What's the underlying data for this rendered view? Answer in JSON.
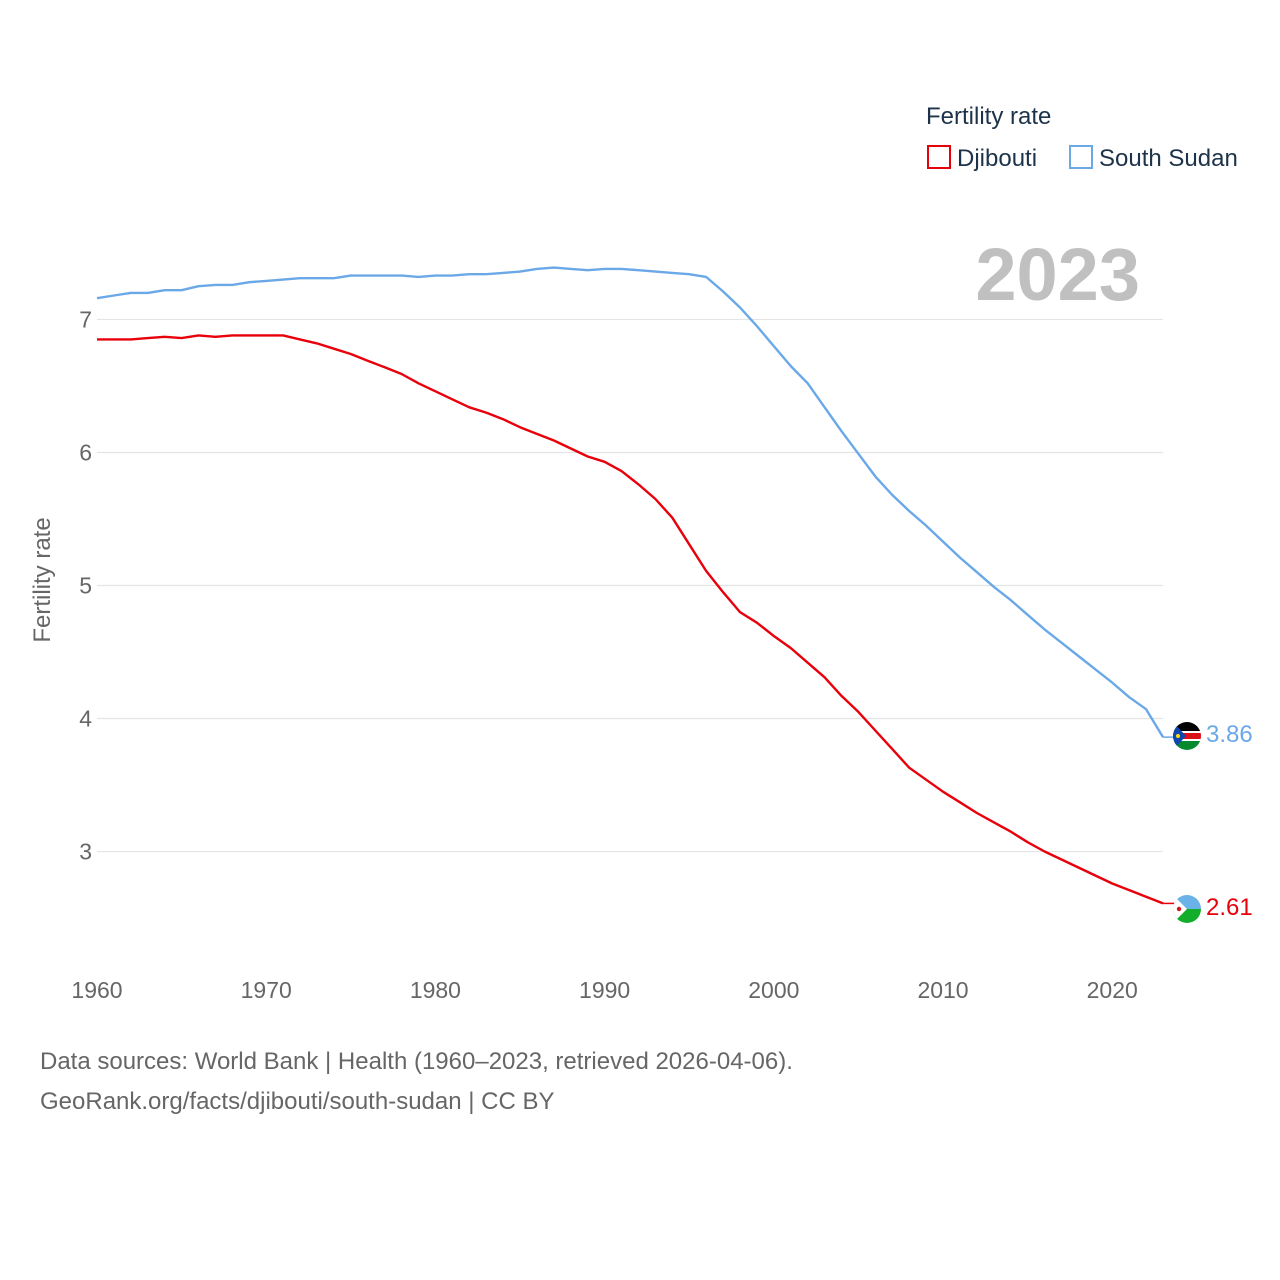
{
  "chart_data": {
    "type": "line",
    "title": "",
    "xlabel": "",
    "ylabel": "Fertility rate",
    "xlim": [
      1960,
      2023
    ],
    "ylim": [
      2.35,
      7.65
    ],
    "x_ticks": [
      1960,
      1970,
      1980,
      1990,
      2000,
      2010,
      2020
    ],
    "y_ticks": [
      3,
      4,
      5,
      6,
      7
    ],
    "grid": "horizontal",
    "legend_title": "Fertility rate",
    "legend_position": "top-right",
    "year_stamp": "2023",
    "x": [
      1960,
      1961,
      1962,
      1963,
      1964,
      1965,
      1966,
      1967,
      1968,
      1969,
      1970,
      1971,
      1972,
      1973,
      1974,
      1975,
      1976,
      1977,
      1978,
      1979,
      1980,
      1981,
      1982,
      1983,
      1984,
      1985,
      1986,
      1987,
      1988,
      1989,
      1990,
      1991,
      1992,
      1993,
      1994,
      1995,
      1996,
      1997,
      1998,
      1999,
      2000,
      2001,
      2002,
      2003,
      2004,
      2005,
      2006,
      2007,
      2008,
      2009,
      2010,
      2011,
      2012,
      2013,
      2014,
      2015,
      2016,
      2017,
      2018,
      2019,
      2020,
      2021,
      2022,
      2023
    ],
    "series": [
      {
        "name": "Djibouti",
        "color": "#e8000b",
        "end_label": "2.61",
        "values": [
          6.85,
          6.85,
          6.85,
          6.86,
          6.87,
          6.86,
          6.88,
          6.87,
          6.88,
          6.88,
          6.88,
          6.88,
          6.85,
          6.82,
          6.78,
          6.74,
          6.69,
          6.64,
          6.59,
          6.52,
          6.46,
          6.4,
          6.34,
          6.3,
          6.25,
          6.19,
          6.14,
          6.09,
          6.03,
          5.97,
          5.93,
          5.86,
          5.76,
          5.65,
          5.51,
          5.31,
          5.11,
          4.95,
          4.8,
          4.72,
          4.62,
          4.53,
          4.42,
          4.31,
          4.17,
          4.05,
          3.91,
          3.77,
          3.63,
          3.54,
          3.45,
          3.37,
          3.29,
          3.22,
          3.15,
          3.07,
          3.0,
          2.94,
          2.88,
          2.82,
          2.76,
          2.71,
          2.66,
          2.61
        ]
      },
      {
        "name": "South Sudan",
        "color": "#6aa8e8",
        "end_label": "3.86",
        "values": [
          7.16,
          7.18,
          7.2,
          7.2,
          7.22,
          7.22,
          7.25,
          7.26,
          7.26,
          7.28,
          7.29,
          7.3,
          7.31,
          7.31,
          7.31,
          7.33,
          7.33,
          7.33,
          7.33,
          7.32,
          7.33,
          7.33,
          7.34,
          7.34,
          7.35,
          7.36,
          7.38,
          7.39,
          7.38,
          7.37,
          7.38,
          7.38,
          7.37,
          7.36,
          7.35,
          7.34,
          7.32,
          7.21,
          7.09,
          6.95,
          6.8,
          6.65,
          6.52,
          6.34,
          6.16,
          5.99,
          5.82,
          5.68,
          5.56,
          5.45,
          5.33,
          5.21,
          5.1,
          4.99,
          4.89,
          4.78,
          4.67,
          4.57,
          4.47,
          4.37,
          4.27,
          4.16,
          4.07,
          3.86
        ]
      }
    ]
  },
  "footer": {
    "line1": "Data sources: World Bank | Health (1960–2023, retrieved 2026-04-06).",
    "line2": "GeoRank.org/facts/djibouti/south-sudan | CC BY"
  }
}
